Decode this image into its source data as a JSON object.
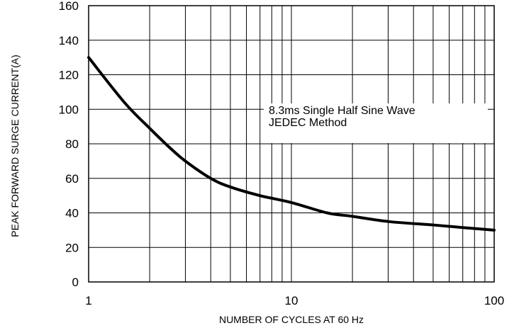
{
  "chart_data": {
    "type": "line",
    "xlabel": "NUMBER OF CYCLES AT 60 Hz",
    "ylabel": "PEAK FORWARD SURGE CURRENT(A)",
    "xscale": "log",
    "xlim": [
      1,
      100
    ],
    "ylim": [
      0,
      160
    ],
    "x_ticks": [
      1,
      10,
      100
    ],
    "y_ticks": [
      0,
      20,
      40,
      60,
      80,
      100,
      120,
      140,
      160
    ],
    "grid": "on",
    "annotation": {
      "line1": "8.3ms Single Half Sine Wave",
      "line2": "JEDEC Method"
    },
    "series": [
      {
        "x": [
          1,
          1.5,
          2,
          2.5,
          3,
          4,
          5,
          7,
          10,
          15,
          20,
          30,
          50,
          70,
          100
        ],
        "y": [
          130,
          104,
          89,
          78,
          70,
          60,
          55,
          50,
          46,
          40,
          38,
          35,
          33,
          31.5,
          30
        ]
      }
    ],
    "color": "#000000"
  }
}
